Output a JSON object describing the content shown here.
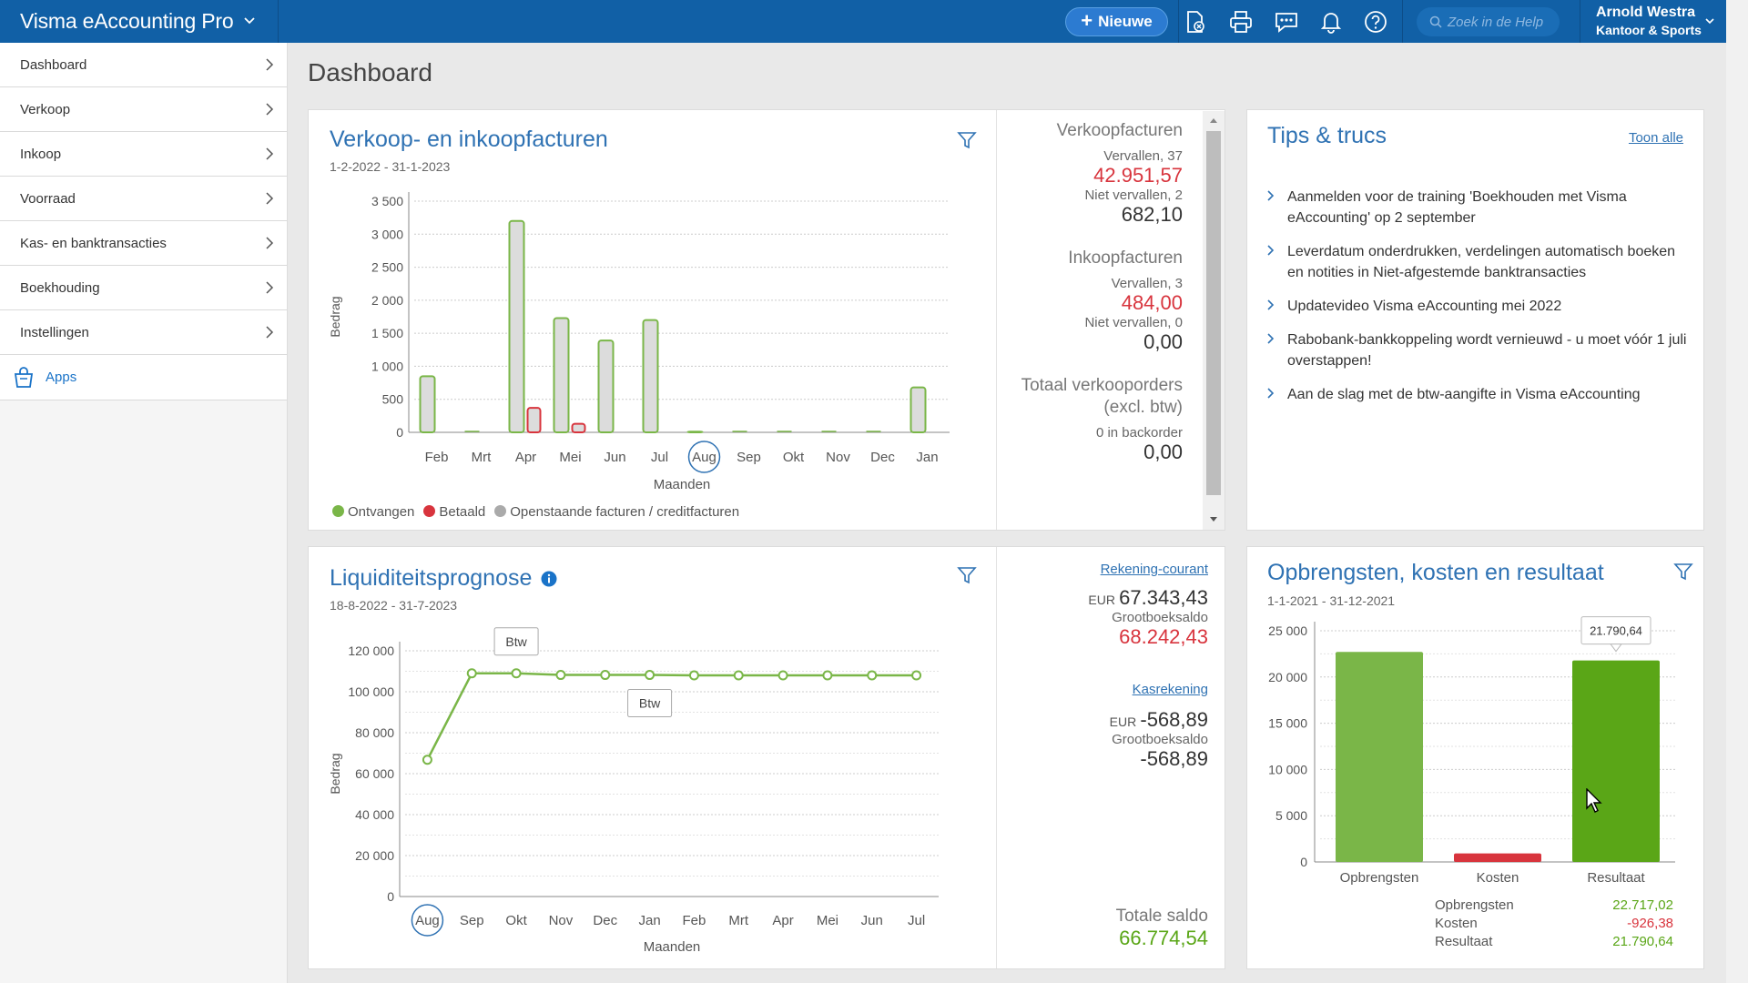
{
  "app": {
    "title": "Visma eAccounting Pro"
  },
  "topbar": {
    "new_label": "Nieuwe",
    "search_placeholder": "Zoek in de Help",
    "user_name": "Arnold Westra",
    "user_org": "Kantoor & Sports",
    "icons": [
      "document-icon",
      "print-icon",
      "chat-icon",
      "bell-icon",
      "help-icon"
    ]
  },
  "sidebar": {
    "items": [
      {
        "label": "Dashboard"
      },
      {
        "label": "Verkoop"
      },
      {
        "label": "Inkoop"
      },
      {
        "label": "Voorraad"
      },
      {
        "label": "Kas- en banktransacties"
      },
      {
        "label": "Boekhouding"
      },
      {
        "label": "Instellingen"
      }
    ],
    "apps_label": "Apps"
  },
  "page": {
    "title": "Dashboard"
  },
  "invoices": {
    "title": "Verkoop- en inkoopfacturen",
    "period": "1-2-2022 - 31-1-2023",
    "legend": {
      "received": "Ontvangen",
      "paid": "Betaald",
      "open": "Openstaande facturen / creditfacturen"
    },
    "sales_head": "Verkoopfacturen",
    "sales_overdue_label": "Vervallen, 37",
    "sales_overdue_amount": "42.951,57",
    "sales_notdue_label": "Niet vervallen, 2",
    "sales_notdue_amount": "682,10",
    "purchase_head": "Inkoopfacturen",
    "purchase_overdue_label": "Vervallen, 3",
    "purchase_overdue_amount": "484,00",
    "purchase_notdue_label": "Niet vervallen, 0",
    "purchase_notdue_amount": "0,00",
    "orders_head_1": "Totaal verkooporders",
    "orders_head_2": "(excl. btw)",
    "orders_backorder_label": "0 in backorder",
    "orders_amount": "0,00"
  },
  "tips": {
    "title": "Tips & trucs",
    "show_all": "Toon alle",
    "items": [
      "Aanmelden voor de training 'Boekhouden met Visma eAccounting' op 2 september",
      "Leverdatum onderdrukken, verdelingen automatisch boeken en notities in Niet-afgestemde banktransacties",
      "Updatevideo Visma eAccounting mei 2022",
      "Rabobank-bankkoppeling wordt vernieuwd - u moet vóór 1 juli overstappen!",
      "Aan de slag met de btw-aangifte in Visma eAccounting"
    ]
  },
  "liquidity": {
    "title": "Liquiditeitsprognose",
    "period": "18-8-2022 - 31-7-2023",
    "account1_link": "Rekening-courant",
    "account1_currency": "EUR",
    "account1_amount": "67.343,43",
    "account1_ledger_label": "Grootboeksaldo",
    "account1_ledger_amount": "68.242,43",
    "account2_link": "Kasrekening",
    "account2_currency": "EUR",
    "account2_amount": "-568,89",
    "account2_ledger_label": "Grootboeksaldo",
    "account2_ledger_amount": "-568,89",
    "total_label": "Totale saldo",
    "total_amount": "66.774,54"
  },
  "results": {
    "title": "Opbrengsten, kosten en resultaat",
    "period": "1-1-2021 - 31-12-2021",
    "tooltip": "21.790,64",
    "rows": [
      {
        "label": "Opbrengsten",
        "value": "22.717,02"
      },
      {
        "label": "Kosten",
        "value": "-926,38"
      },
      {
        "label": "Resultaat",
        "value": "21.790,64"
      }
    ]
  },
  "colors": {
    "green": "#7ab648",
    "red": "#d8343d",
    "grey": "#d9d9d9",
    "blue": "#2f72b3",
    "topbar": "#1160a6",
    "result_green": "#5aa617"
  },
  "chart_data": [
    {
      "type": "bar",
      "title": "Verkoop- en inkoopfacturen",
      "xlabel": "Maanden",
      "ylabel": "Bedrag",
      "ylim": [
        0,
        3500
      ],
      "yticks": [
        "0",
        "500",
        "1 000",
        "1 500",
        "2 000",
        "2 500",
        "3 000",
        "3 500"
      ],
      "categories": [
        "Feb",
        "Mrt",
        "Apr",
        "Mei",
        "Jun",
        "Jul",
        "Aug",
        "Sep",
        "Okt",
        "Nov",
        "Dec",
        "Jan"
      ],
      "highlighted_category": "Aug",
      "series": [
        {
          "name": "Ontvangen",
          "values": [
            850,
            0,
            3200,
            1730,
            1390,
            1700,
            10,
            0,
            0,
            0,
            0,
            680
          ]
        },
        {
          "name": "Betaald",
          "values": [
            0,
            0,
            370,
            130,
            0,
            0,
            0,
            0,
            0,
            0,
            0,
            0
          ]
        }
      ],
      "legend": [
        "Ontvangen",
        "Betaald",
        "Openstaande facturen / creditfacturen"
      ]
    },
    {
      "type": "line",
      "title": "Liquiditeitsprognose",
      "xlabel": "Maanden",
      "ylabel": "Bedrag",
      "ylim": [
        0,
        120000
      ],
      "yticks": [
        "0",
        "20 000",
        "40 000",
        "60 000",
        "80 000",
        "100 000",
        "120 000"
      ],
      "categories": [
        "Aug",
        "Sep",
        "Okt",
        "Nov",
        "Dec",
        "Jan",
        "Feb",
        "Mrt",
        "Apr",
        "Mei",
        "Jun",
        "Jul"
      ],
      "highlighted_category": "Aug",
      "values": [
        66774,
        109000,
        109000,
        108200,
        108200,
        108200,
        108000,
        108000,
        108000,
        108000,
        108000,
        108000
      ],
      "annotations": [
        {
          "index": 2,
          "label": "Btw",
          "position": "above"
        },
        {
          "index": 5,
          "label": "Btw",
          "position": "below"
        }
      ]
    },
    {
      "type": "bar",
      "title": "Opbrengsten, kosten en resultaat",
      "ylim": [
        0,
        25000
      ],
      "yticks": [
        "0",
        "5 000",
        "10 000",
        "15 000",
        "20 000",
        "25 000"
      ],
      "categories": [
        "Opbrengsten",
        "Kosten",
        "Resultaat"
      ],
      "values": [
        22717.02,
        926.38,
        21790.64
      ]
    }
  ]
}
